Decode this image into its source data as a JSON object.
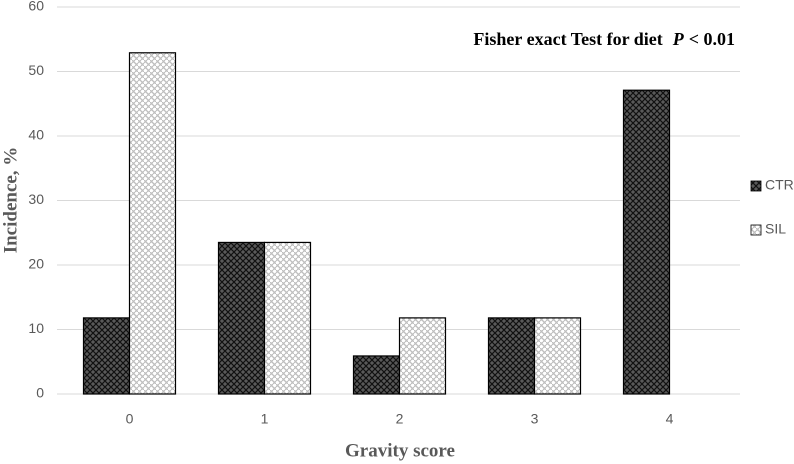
{
  "chart_data": {
    "type": "bar",
    "annotation": [
      "Fisher exact Test for diet",
      "P",
      "< 0.01"
    ],
    "x_label": "Gravity score",
    "y_label": "Incidence, %",
    "categories": [
      "0",
      "1",
      "2",
      "3",
      "4"
    ],
    "series": [
      {
        "name": "CTR",
        "color": "#595959",
        "values": [
          11.8,
          23.5,
          5.9,
          11.8,
          47.1
        ]
      },
      {
        "name": "SIL",
        "color": "#bfbfbf",
        "values": [
          52.9,
          23.5,
          11.8,
          11.8,
          0
        ]
      }
    ],
    "ylim": [
      0,
      60
    ],
    "yticks": [
      0,
      10,
      20,
      30,
      40,
      50,
      60
    ],
    "grid": true,
    "legend": "right"
  }
}
